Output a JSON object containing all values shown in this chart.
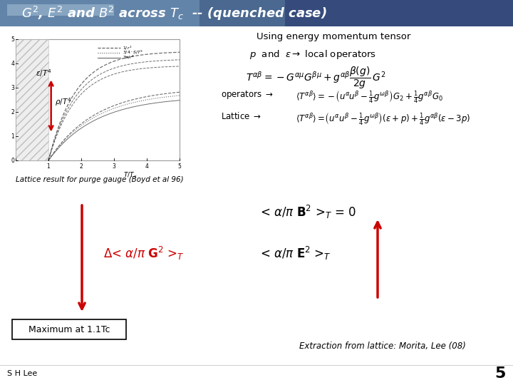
{
  "title": "G$^2$, E$^2$ and B$^2$ across T$_c$  -- (quenched case)",
  "title_color": "#FFFFFF",
  "background_color": "#FFFFFF",
  "header_gradient_top": "#a8c4d8",
  "header_gradient_mid": "#5577aa",
  "header_gradient_bot": "#1a3a6a",
  "text_using_energy": "Using energy momentum tensor",
  "text_p_and_e": "p  and  ε → local operators",
  "text_lattice_result": "Lattice result for purge gauge (Boyd et al 96)",
  "text_B2": "< α/π B$^2$ >$_T$ = 0",
  "text_delta_G2": "Δ< α/π G$^2$ >$_T$",
  "text_E2": "< α/π E$^2$ >$_T$",
  "text_maximum": "Maximum at 1.1Tc",
  "text_extraction": "Extraction from lattice: Morita, Lee (08)",
  "text_SH_Lee": "S H Lee",
  "page_number": "5",
  "arrow_color": "#CC0000",
  "delta_color": "#CC0000"
}
